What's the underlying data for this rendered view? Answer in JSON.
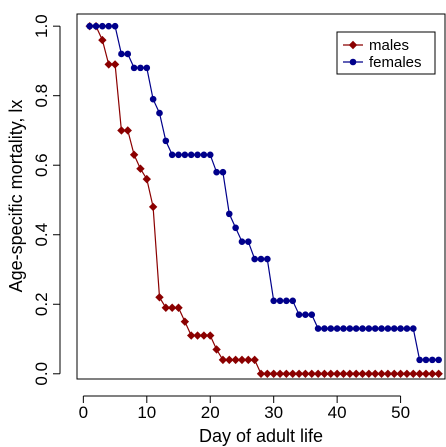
{
  "chart_data": {
    "type": "line",
    "title": "",
    "xlabel": "Day of adult life",
    "ylabel": "Age-specific mortality, lx",
    "xlim": [
      -1,
      57
    ],
    "ylim": [
      -0.015,
      1.035
    ],
    "x_ticks": [
      "0",
      "10",
      "20",
      "30",
      "40",
      "50"
    ],
    "x_tick_values": [
      0,
      10,
      20,
      30,
      40,
      50
    ],
    "y_ticks": [
      "0.0",
      "0.2",
      "0.4",
      "0.6",
      "0.8",
      "1.0"
    ],
    "y_tick_values": [
      0.0,
      0.2,
      0.4,
      0.6,
      0.8,
      1.0
    ],
    "grid": false,
    "legend_position": "top-right",
    "series": [
      {
        "name": "males",
        "color": "#8b0000",
        "marker": "diamond",
        "x": [
          1,
          2,
          3,
          4,
          5,
          6,
          7,
          8,
          9,
          10,
          11,
          12,
          13,
          14,
          15,
          16,
          17,
          18,
          19,
          20,
          21,
          22,
          23,
          24,
          25,
          26,
          27,
          28,
          29,
          30,
          31,
          32,
          33,
          34,
          35,
          36,
          37,
          38,
          39,
          40,
          41,
          42,
          43,
          44,
          45,
          46,
          47,
          48,
          49,
          50,
          51,
          52,
          53,
          54,
          55,
          56
        ],
        "y": [
          1.0,
          1.0,
          0.96,
          0.89,
          0.89,
          0.7,
          0.7,
          0.63,
          0.59,
          0.56,
          0.48,
          0.22,
          0.19,
          0.19,
          0.19,
          0.15,
          0.11,
          0.11,
          0.11,
          0.11,
          0.07,
          0.04,
          0.04,
          0.04,
          0.04,
          0.04,
          0.04,
          0.0,
          0.0,
          0.0,
          0.0,
          0.0,
          0.0,
          0.0,
          0.0,
          0.0,
          0.0,
          0.0,
          0.0,
          0.0,
          0.0,
          0.0,
          0.0,
          0.0,
          0.0,
          0.0,
          0.0,
          0.0,
          0.0,
          0.0,
          0.0,
          0.0,
          0.0,
          0.0,
          0.0,
          0.0
        ]
      },
      {
        "name": "females",
        "color": "#00008b",
        "marker": "circle",
        "x": [
          1,
          2,
          3,
          4,
          5,
          6,
          7,
          8,
          9,
          10,
          11,
          12,
          13,
          14,
          15,
          16,
          17,
          18,
          19,
          20,
          21,
          22,
          23,
          24,
          25,
          26,
          27,
          28,
          29,
          30,
          31,
          32,
          33,
          34,
          35,
          36,
          37,
          38,
          39,
          40,
          41,
          42,
          43,
          44,
          45,
          46,
          47,
          48,
          49,
          50,
          51,
          52,
          53,
          54,
          55,
          56
        ],
        "y": [
          1.0,
          1.0,
          1.0,
          1.0,
          1.0,
          0.92,
          0.92,
          0.88,
          0.88,
          0.88,
          0.79,
          0.75,
          0.67,
          0.63,
          0.63,
          0.63,
          0.63,
          0.63,
          0.63,
          0.63,
          0.58,
          0.58,
          0.46,
          0.42,
          0.38,
          0.38,
          0.33,
          0.33,
          0.33,
          0.21,
          0.21,
          0.21,
          0.21,
          0.17,
          0.17,
          0.17,
          0.13,
          0.13,
          0.13,
          0.13,
          0.13,
          0.13,
          0.13,
          0.13,
          0.13,
          0.13,
          0.13,
          0.13,
          0.13,
          0.13,
          0.13,
          0.13,
          0.04,
          0.04,
          0.04,
          0.04
        ]
      }
    ]
  }
}
